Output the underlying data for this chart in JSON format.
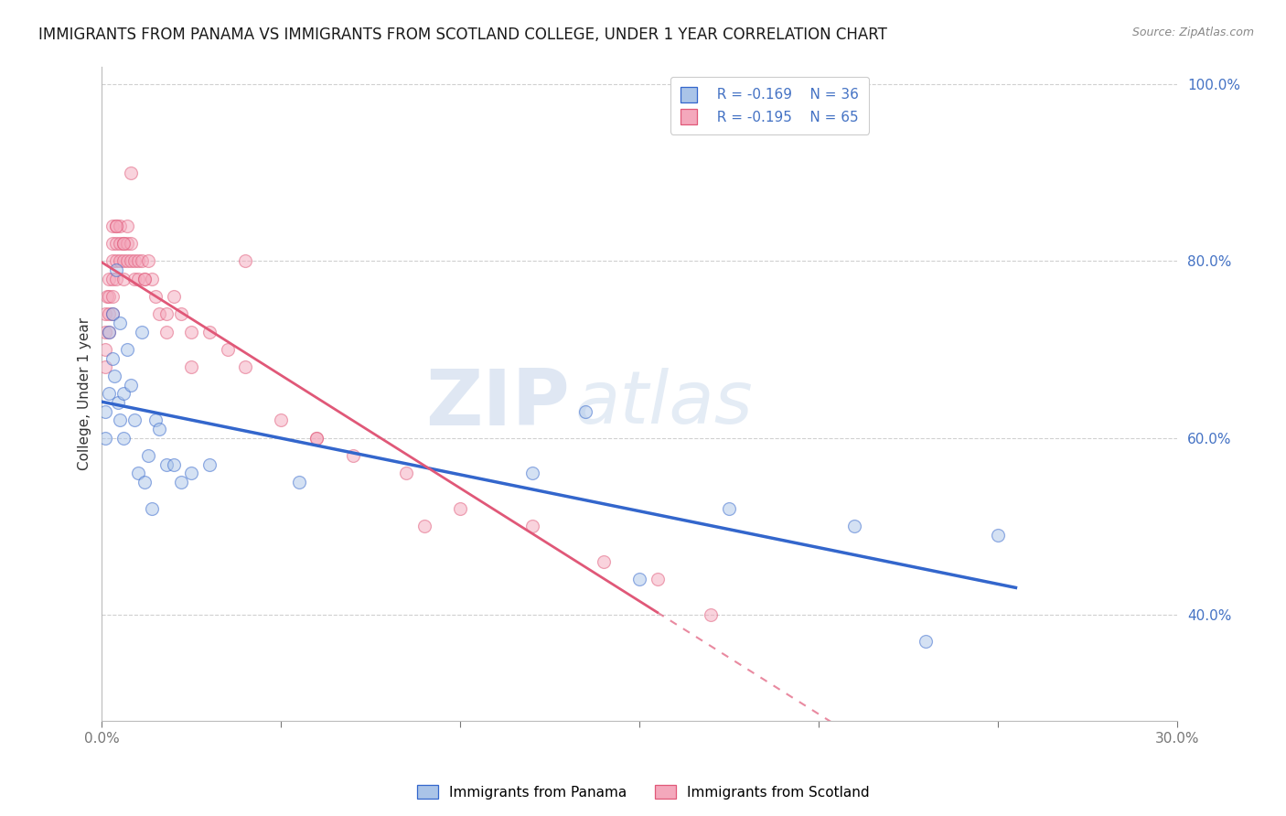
{
  "title": "IMMIGRANTS FROM PANAMA VS IMMIGRANTS FROM SCOTLAND COLLEGE, UNDER 1 YEAR CORRELATION CHART",
  "source": "Source: ZipAtlas.com",
  "ylabel": "College, Under 1 year",
  "xlim": [
    0.0,
    0.3
  ],
  "ylim": [
    0.28,
    1.02
  ],
  "xticks": [
    0.0,
    0.05,
    0.1,
    0.15,
    0.2,
    0.25,
    0.3
  ],
  "xtick_labels": [
    "0.0%",
    "",
    "",
    "",
    "",
    "",
    "30.0%"
  ],
  "yticks": [
    0.4,
    0.6,
    0.8,
    1.0
  ],
  "ytick_labels": [
    "40.0%",
    "60.0%",
    "80.0%",
    "100.0%"
  ],
  "legend_r_panama": "R = -0.169",
  "legend_n_panama": "N = 36",
  "legend_r_scotland": "R = -0.195",
  "legend_n_scotland": "N = 65",
  "legend_label_panama": "Immigrants from Panama",
  "legend_label_scotland": "Immigrants from Scotland",
  "panama_color": "#aac4e8",
  "scotland_color": "#f4a8bc",
  "panama_line_color": "#3366CC",
  "scotland_line_color": "#E05878",
  "watermark_zip": "ZIP",
  "watermark_atlas": "atlas",
  "background_color": "#ffffff",
  "grid_color": "#d0d0d0",
  "axis_color": "#4472C4",
  "title_fontsize": 12,
  "axis_label_fontsize": 11,
  "tick_fontsize": 11,
  "marker_size": 100,
  "marker_alpha": 0.5,
  "panama_x": [
    0.001,
    0.001,
    0.002,
    0.002,
    0.003,
    0.003,
    0.0035,
    0.004,
    0.0045,
    0.005,
    0.005,
    0.006,
    0.006,
    0.007,
    0.008,
    0.009,
    0.01,
    0.011,
    0.012,
    0.013,
    0.014,
    0.015,
    0.016,
    0.018,
    0.02,
    0.022,
    0.025,
    0.03,
    0.055,
    0.12,
    0.135,
    0.15,
    0.175,
    0.21,
    0.23,
    0.25
  ],
  "panama_y": [
    0.63,
    0.6,
    0.72,
    0.65,
    0.74,
    0.69,
    0.67,
    0.79,
    0.64,
    0.73,
    0.62,
    0.6,
    0.65,
    0.7,
    0.66,
    0.62,
    0.56,
    0.72,
    0.55,
    0.58,
    0.52,
    0.62,
    0.61,
    0.57,
    0.57,
    0.55,
    0.56,
    0.57,
    0.55,
    0.56,
    0.63,
    0.44,
    0.52,
    0.5,
    0.37,
    0.49
  ],
  "scotland_x": [
    0.001,
    0.001,
    0.001,
    0.001,
    0.0015,
    0.002,
    0.002,
    0.002,
    0.002,
    0.003,
    0.003,
    0.003,
    0.003,
    0.003,
    0.003,
    0.004,
    0.004,
    0.004,
    0.004,
    0.005,
    0.005,
    0.005,
    0.006,
    0.006,
    0.006,
    0.007,
    0.007,
    0.007,
    0.008,
    0.008,
    0.009,
    0.009,
    0.01,
    0.01,
    0.011,
    0.012,
    0.013,
    0.014,
    0.015,
    0.016,
    0.018,
    0.02,
    0.022,
    0.025,
    0.03,
    0.035,
    0.04,
    0.05,
    0.06,
    0.07,
    0.085,
    0.1,
    0.12,
    0.14,
    0.155,
    0.17,
    0.04,
    0.008,
    0.025,
    0.06,
    0.09,
    0.012,
    0.018,
    0.006,
    0.004
  ],
  "scotland_y": [
    0.74,
    0.72,
    0.7,
    0.68,
    0.76,
    0.78,
    0.76,
    0.74,
    0.72,
    0.84,
    0.82,
    0.8,
    0.78,
    0.76,
    0.74,
    0.84,
    0.82,
    0.8,
    0.78,
    0.84,
    0.82,
    0.8,
    0.82,
    0.8,
    0.78,
    0.84,
    0.82,
    0.8,
    0.82,
    0.8,
    0.8,
    0.78,
    0.8,
    0.78,
    0.8,
    0.78,
    0.8,
    0.78,
    0.76,
    0.74,
    0.74,
    0.76,
    0.74,
    0.72,
    0.72,
    0.7,
    0.68,
    0.62,
    0.6,
    0.58,
    0.56,
    0.52,
    0.5,
    0.46,
    0.44,
    0.4,
    0.8,
    0.9,
    0.68,
    0.6,
    0.5,
    0.78,
    0.72,
    0.82,
    0.84
  ],
  "scotland_line_end_x": 0.155,
  "panama_line_end_x": 0.255
}
